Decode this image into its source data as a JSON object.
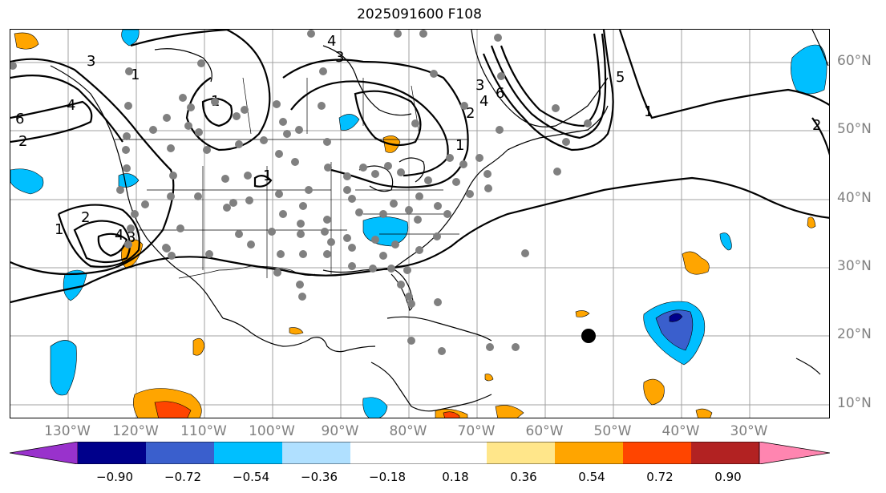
{
  "title": "2025091600 F108",
  "map": {
    "lon_labels": [
      "130°W",
      "120°W",
      "110°W",
      "100°W",
      "90°W",
      "80°W",
      "70°W",
      "60°W",
      "50°W",
      "40°W",
      "30°W"
    ],
    "lat_labels": [
      "60°N",
      "50°N",
      "40°N",
      "30°N",
      "20°N",
      "10°N"
    ],
    "contour_labels": [
      "6",
      "2",
      "1",
      "4",
      "1",
      "2",
      "4",
      "3",
      "4",
      "3",
      "3",
      "1",
      "1",
      "2",
      "3",
      "4",
      "6",
      "5",
      "1",
      "2",
      "1"
    ],
    "colors": {
      "land_line": "#000000",
      "grid": "#a0a0a0",
      "station": "#808080",
      "text_gray": "#808080"
    }
  },
  "colorbar": {
    "ticks": [
      "−0.90",
      "−0.72",
      "−0.54",
      "−0.36",
      "−0.18",
      "0.18",
      "0.36",
      "0.54",
      "0.72",
      "0.90"
    ],
    "colors": [
      "#9932CC",
      "#00008B",
      "#3A5FCD",
      "#00BFFF",
      "#B0E0FF",
      "#FFFFFF",
      "#FFE68A",
      "#FFA500",
      "#FF4500",
      "#B22222",
      "#FF85B0"
    ]
  }
}
